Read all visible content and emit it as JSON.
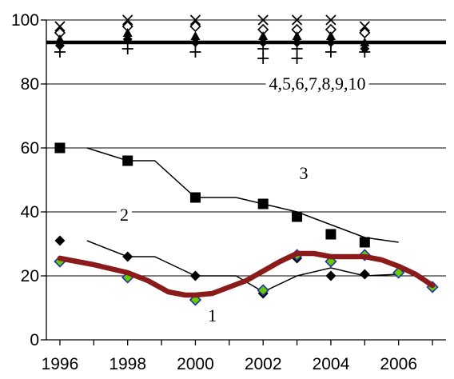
{
  "chart_data": {
    "type": "line",
    "title": "",
    "xlabel": "",
    "ylabel": "",
    "ylim": [
      0,
      100
    ],
    "yticks": [
      0,
      20,
      40,
      60,
      80,
      100
    ],
    "xlim": [
      1995.6,
      2007.4
    ],
    "xticks": [
      1996,
      1998,
      2000,
      2002,
      2004,
      2006
    ],
    "grid": "horizontal",
    "annotations": [
      {
        "text": "4,5,6,7,8,9,10",
        "x": 2003.6,
        "y": 80
      },
      {
        "text": "3",
        "x": 2003.2,
        "y": 52
      },
      {
        "text": "2",
        "x": 1997.9,
        "y": 39
      },
      {
        "text": "1",
        "x": 2000.5,
        "y": 7.5
      }
    ],
    "series": [
      {
        "label": "4,5,6,7,8,9,10",
        "style": "thick-line",
        "color": "#000000",
        "x": [
          1995.6,
          2007.4
        ],
        "y": [
          93,
          93
        ]
      },
      {
        "label": "4,5,6,7,8,9,10",
        "style": "markers-mixed",
        "color": "#000000",
        "columns": [
          {
            "x": 1996,
            "y": [
              98,
              96,
              94,
              92,
              90
            ]
          },
          {
            "x": 1998,
            "y": [
              100,
              98,
              96,
              94,
              91
            ]
          },
          {
            "x": 2000,
            "y": [
              100,
              98,
              95,
              93,
              90
            ]
          },
          {
            "x": 2002,
            "y": [
              100,
              97,
              95,
              93,
              91,
              88
            ]
          },
          {
            "x": 2003,
            "y": [
              100,
              97,
              95,
              93,
              91,
              88
            ]
          },
          {
            "x": 2004,
            "y": [
              100,
              97,
              95,
              93,
              90
            ]
          },
          {
            "x": 2005,
            "y": [
              98,
              96,
              93,
              91,
              90
            ]
          }
        ]
      },
      {
        "label": "3",
        "style": "square-markers",
        "color": "#000000",
        "x": [
          1996,
          1998,
          2000,
          2002,
          2003,
          2004,
          2005
        ],
        "y": [
          60,
          56,
          44.5,
          42.5,
          38.5,
          33,
          30.5
        ]
      },
      {
        "label": "3",
        "style": "thin-line",
        "color": "#000000",
        "x": [
          1996.8,
          1998,
          1998.8,
          2000,
          2001.2,
          2002,
          2003,
          2004,
          2005,
          2006
        ],
        "y": [
          60,
          56,
          56,
          44.5,
          44.5,
          42.5,
          40,
          36,
          32,
          30.5
        ]
      },
      {
        "label": "2",
        "style": "diamond-markers",
        "color": "#000000",
        "x": [
          1996,
          1998,
          2000,
          2002,
          2003,
          2004,
          2005
        ],
        "y": [
          31,
          26,
          20,
          14.5,
          25.5,
          20,
          20.5
        ]
      },
      {
        "label": "2",
        "style": "thin-line",
        "color": "#000000",
        "x": [
          1996.8,
          1998,
          1998.8,
          2000,
          2001.2,
          2002,
          2003,
          2004,
          2005,
          2006
        ],
        "y": [
          31,
          26,
          26,
          20,
          20,
          15,
          20,
          22.5,
          20,
          20.5
        ]
      },
      {
        "label": "1",
        "style": "green-diamond-markers",
        "color": "#66cc00",
        "edge": "#2233aa",
        "x": [
          1996,
          1998,
          2000,
          2002,
          2003,
          2004,
          2005,
          2006,
          2007
        ],
        "y": [
          24.5,
          19.5,
          12.5,
          15.5,
          26.5,
          24.5,
          26.5,
          21,
          16.5
        ]
      },
      {
        "label": "1",
        "style": "thick-smooth-line",
        "color": "#8b1a1a",
        "x": [
          1996,
          1997,
          1998,
          1998.6,
          1999.2,
          1999.7,
          2000,
          2000.5,
          2001,
          2001.5,
          2002,
          2002.5,
          2003,
          2003.5,
          2004,
          2004.5,
          2005,
          2005.5,
          2006,
          2006.5,
          2007
        ],
        "y": [
          25.5,
          23.5,
          21,
          18.5,
          15,
          14,
          14,
          14.5,
          16.5,
          18.5,
          21.5,
          24.5,
          27,
          27,
          26,
          26,
          26,
          25,
          23,
          20.5,
          17
        ]
      }
    ]
  }
}
